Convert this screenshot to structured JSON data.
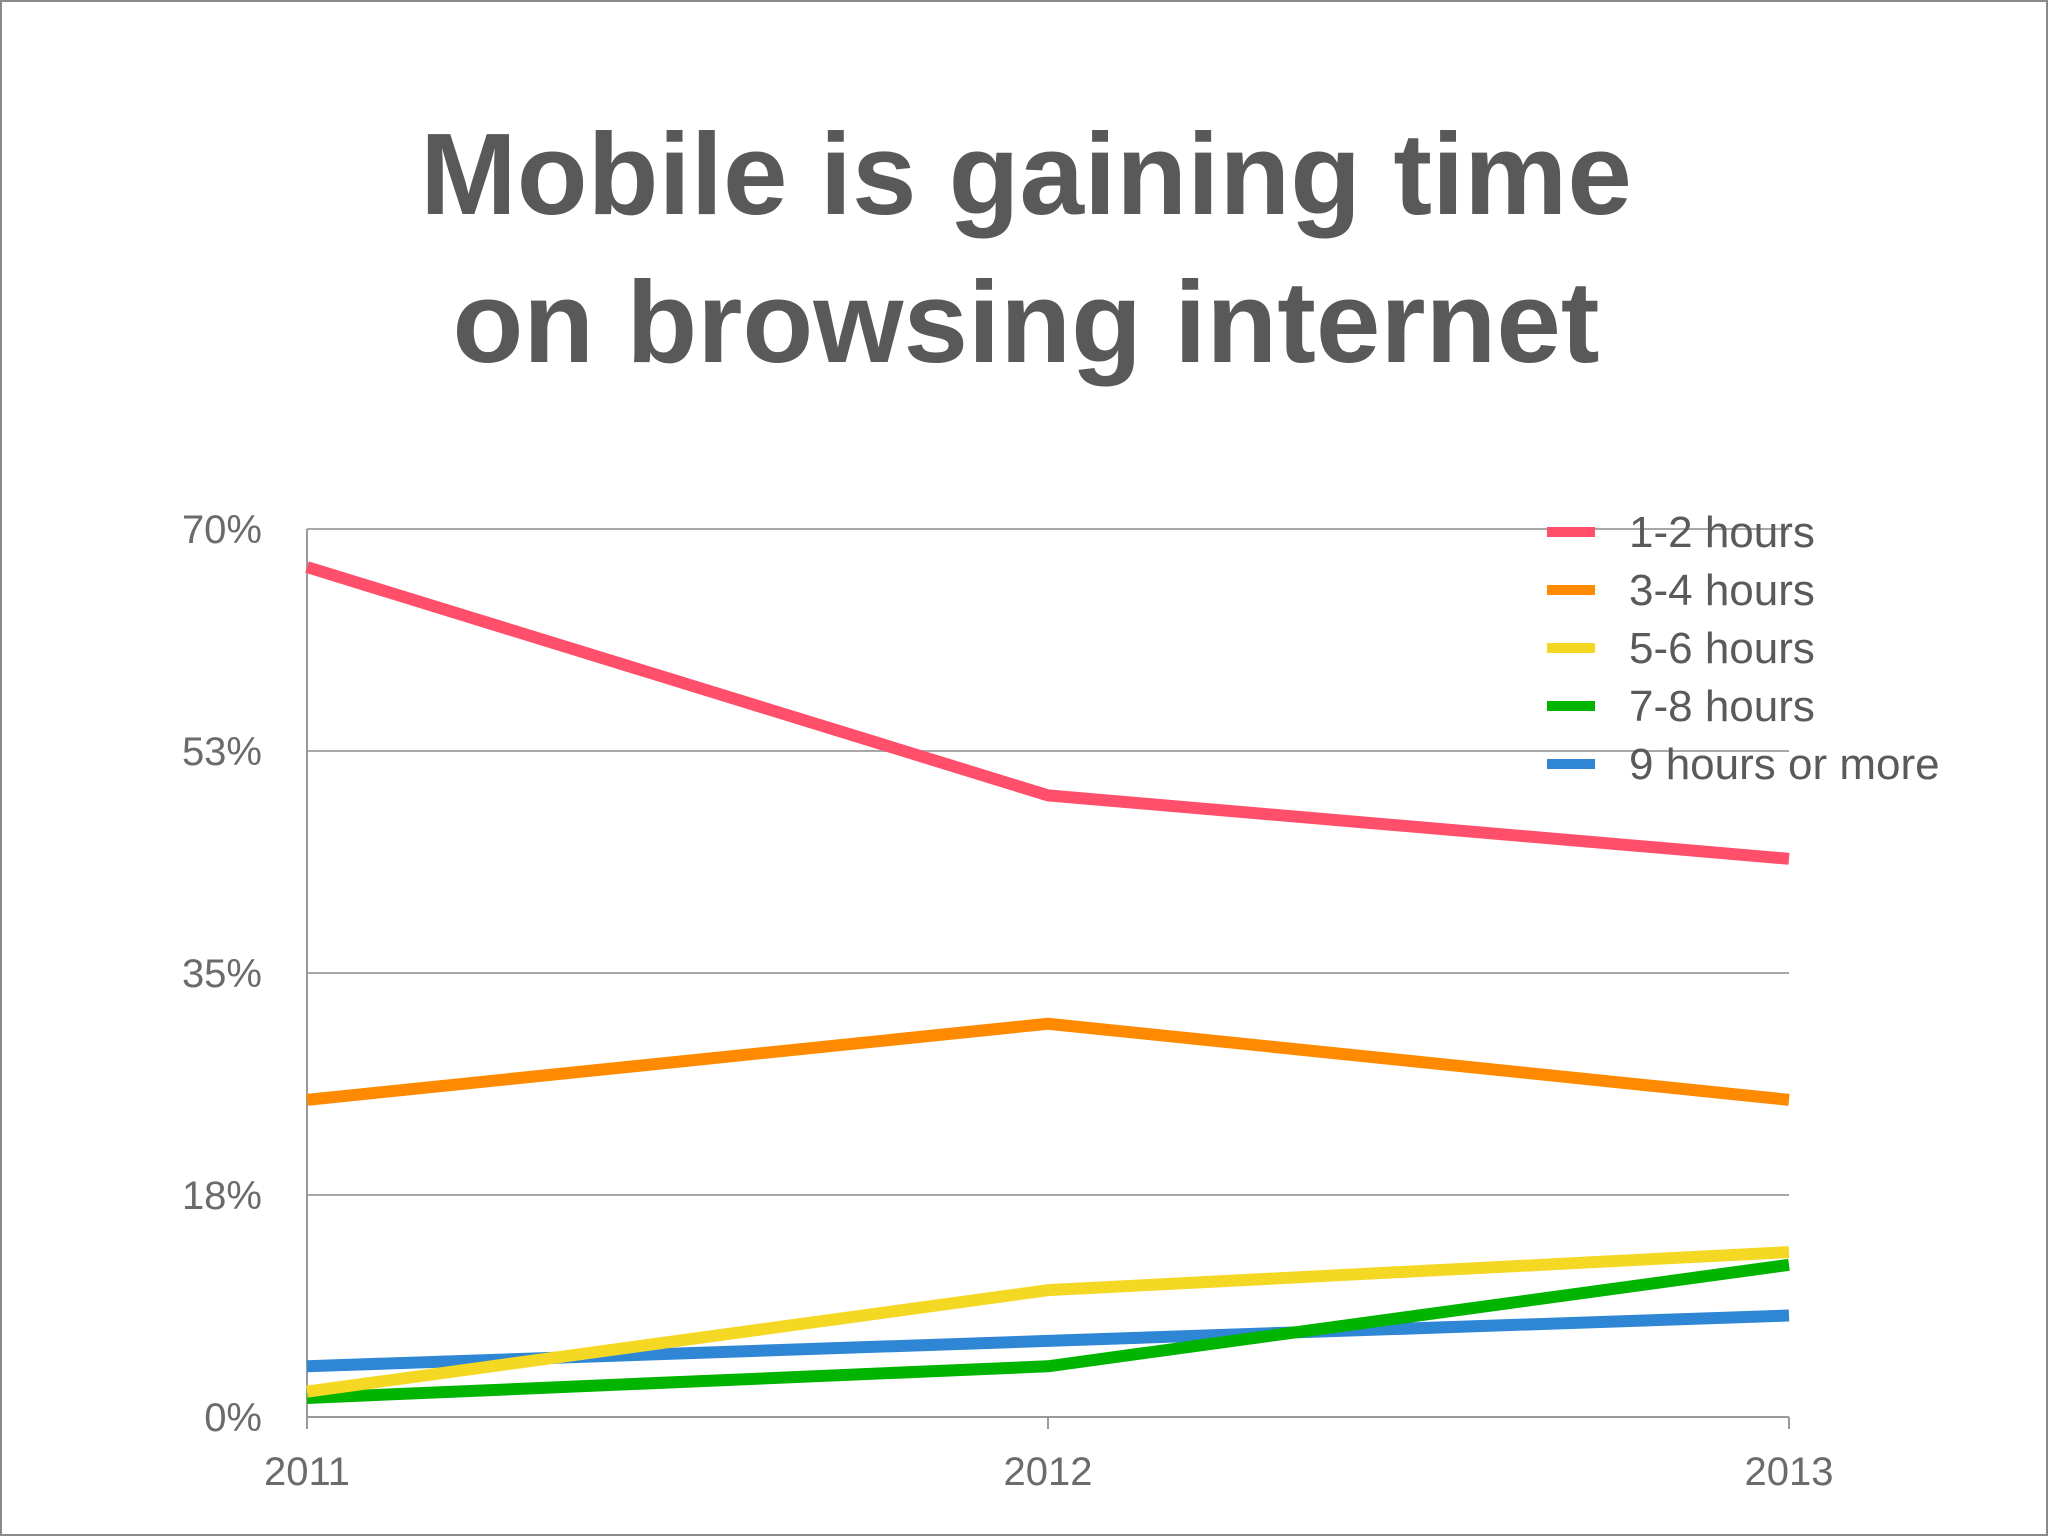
{
  "chart_data": {
    "type": "line",
    "title_lines": [
      "Mobile is gaining time",
      "on browsing internet"
    ],
    "x": [
      "2011",
      "2012",
      "2013"
    ],
    "y_ticks": [
      "0%",
      "18%",
      "35%",
      "53%",
      "70%"
    ],
    "y_tick_values": [
      0,
      17.5,
      35,
      52.5,
      70
    ],
    "ylim": [
      0,
      70
    ],
    "grid": true,
    "legend_position": "top-right",
    "series": [
      {
        "name": "1-2 hours",
        "color": "#ff4f6a",
        "values": [
          67,
          49,
          44
        ]
      },
      {
        "name": "3-4 hours",
        "color": "#ff8a00",
        "values": [
          25,
          31,
          25
        ]
      },
      {
        "name": "5-6 hours",
        "color": "#f5d823",
        "values": [
          2,
          10,
          13
        ]
      },
      {
        "name": "7-8 hours",
        "color": "#00b400",
        "values": [
          1.5,
          4,
          12
        ]
      },
      {
        "name": "9 hours or more",
        "color": "#2e86d4",
        "values": [
          4,
          6,
          8
        ]
      }
    ]
  }
}
